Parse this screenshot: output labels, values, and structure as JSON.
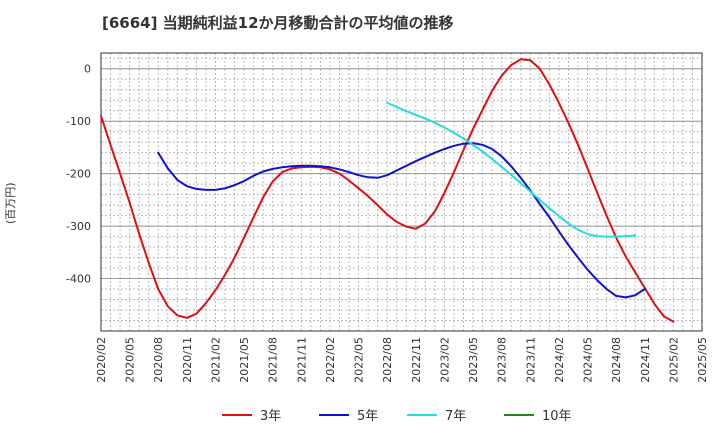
{
  "chart_data": {
    "type": "line",
    "title": "[6664]  当期純利益12か月移動合計の平均値の推移",
    "ylabel": "(百万円)",
    "xlabel": "",
    "x_ticks": [
      "2020/02",
      "2020/05",
      "2020/08",
      "2020/11",
      "2021/02",
      "2021/05",
      "2021/08",
      "2021/11",
      "2022/02",
      "2022/05",
      "2022/08",
      "2022/11",
      "2023/02",
      "2023/05",
      "2023/08",
      "2023/11",
      "2024/02",
      "2024/05",
      "2024/08",
      "2024/11",
      "2025/02",
      "2025/05"
    ],
    "y_ticks": [
      0,
      -100,
      -200,
      -300,
      -400
    ],
    "xlim": [
      "2020/02",
      "2025/05"
    ],
    "ylim": [
      -500,
      30
    ],
    "grid": true,
    "legend_position": "bottom",
    "series": [
      {
        "name": "3年",
        "color": "#dd1111",
        "points": [
          [
            "2020/02",
            -90
          ],
          [
            "2020/03",
            -145
          ],
          [
            "2020/04",
            -200
          ],
          [
            "2020/05",
            -255
          ],
          [
            "2020/06",
            -315
          ],
          [
            "2020/07",
            -370
          ],
          [
            "2020/08",
            -420
          ],
          [
            "2020/09",
            -453
          ],
          [
            "2020/10",
            -470
          ],
          [
            "2020/11",
            -475
          ],
          [
            "2020/12",
            -467
          ],
          [
            "2021/01",
            -447
          ],
          [
            "2021/02",
            -422
          ],
          [
            "2021/03",
            -393
          ],
          [
            "2021/04",
            -360
          ],
          [
            "2021/05",
            -322
          ],
          [
            "2021/06",
            -283
          ],
          [
            "2021/07",
            -245
          ],
          [
            "2021/08",
            -215
          ],
          [
            "2021/09",
            -197
          ],
          [
            "2021/10",
            -190
          ],
          [
            "2021/11",
            -188
          ],
          [
            "2021/12",
            -187
          ],
          [
            "2022/01",
            -188
          ],
          [
            "2022/02",
            -192
          ],
          [
            "2022/03",
            -200
          ],
          [
            "2022/04",
            -213
          ],
          [
            "2022/05",
            -228
          ],
          [
            "2022/06",
            -243
          ],
          [
            "2022/07",
            -260
          ],
          [
            "2022/08",
            -278
          ],
          [
            "2022/09",
            -292
          ],
          [
            "2022/10",
            -301
          ],
          [
            "2022/11",
            -305
          ],
          [
            "2022/12",
            -295
          ],
          [
            "2023/01",
            -272
          ],
          [
            "2023/02",
            -237
          ],
          [
            "2023/03",
            -197
          ],
          [
            "2023/04",
            -155
          ],
          [
            "2023/05",
            -115
          ],
          [
            "2023/06",
            -78
          ],
          [
            "2023/07",
            -42
          ],
          [
            "2023/08",
            -13
          ],
          [
            "2023/09",
            7
          ],
          [
            "2023/10",
            18
          ],
          [
            "2023/11",
            16
          ],
          [
            "2023/12",
            0
          ],
          [
            "2024/01",
            -30
          ],
          [
            "2024/02",
            -65
          ],
          [
            "2024/03",
            -103
          ],
          [
            "2024/04",
            -145
          ],
          [
            "2024/05",
            -190
          ],
          [
            "2024/06",
            -236
          ],
          [
            "2024/07",
            -280
          ],
          [
            "2024/08",
            -322
          ],
          [
            "2024/09",
            -358
          ],
          [
            "2024/10",
            -388
          ],
          [
            "2024/11",
            -418
          ],
          [
            "2024/12",
            -448
          ],
          [
            "2025/01",
            -472
          ],
          [
            "2025/02",
            -482
          ]
        ]
      },
      {
        "name": "5年",
        "color": "#1111cc",
        "points": [
          [
            "2020/08",
            -160
          ],
          [
            "2020/09",
            -190
          ],
          [
            "2020/10",
            -212
          ],
          [
            "2020/11",
            -224
          ],
          [
            "2020/12",
            -229
          ],
          [
            "2021/01",
            -231
          ],
          [
            "2021/02",
            -231
          ],
          [
            "2021/03",
            -228
          ],
          [
            "2021/04",
            -222
          ],
          [
            "2021/05",
            -214
          ],
          [
            "2021/06",
            -204
          ],
          [
            "2021/07",
            -196
          ],
          [
            "2021/08",
            -191
          ],
          [
            "2021/09",
            -188
          ],
          [
            "2021/10",
            -186
          ],
          [
            "2021/11",
            -185
          ],
          [
            "2021/12",
            -185
          ],
          [
            "2022/01",
            -186
          ],
          [
            "2022/02",
            -188
          ],
          [
            "2022/03",
            -192
          ],
          [
            "2022/04",
            -197
          ],
          [
            "2022/05",
            -203
          ],
          [
            "2022/06",
            -207
          ],
          [
            "2022/07",
            -208
          ],
          [
            "2022/08",
            -203
          ],
          [
            "2022/09",
            -194
          ],
          [
            "2022/10",
            -185
          ],
          [
            "2022/11",
            -176
          ],
          [
            "2022/12",
            -168
          ],
          [
            "2023/01",
            -160
          ],
          [
            "2023/02",
            -153
          ],
          [
            "2023/03",
            -147
          ],
          [
            "2023/04",
            -143
          ],
          [
            "2023/05",
            -142
          ],
          [
            "2023/06",
            -145
          ],
          [
            "2023/07",
            -153
          ],
          [
            "2023/08",
            -167
          ],
          [
            "2023/09",
            -186
          ],
          [
            "2023/10",
            -208
          ],
          [
            "2023/11",
            -232
          ],
          [
            "2023/12",
            -258
          ],
          [
            "2024/01",
            -283
          ],
          [
            "2024/02",
            -310
          ],
          [
            "2024/03",
            -336
          ],
          [
            "2024/04",
            -360
          ],
          [
            "2024/05",
            -383
          ],
          [
            "2024/06",
            -403
          ],
          [
            "2024/07",
            -420
          ],
          [
            "2024/08",
            -433
          ],
          [
            "2024/09",
            -436
          ],
          [
            "2024/10",
            -432
          ],
          [
            "2024/11",
            -420
          ]
        ]
      },
      {
        "name": "7年",
        "color": "#22dddd",
        "points": [
          [
            "2022/08",
            -65
          ],
          [
            "2022/09",
            -73
          ],
          [
            "2022/10",
            -81
          ],
          [
            "2022/11",
            -88
          ],
          [
            "2022/12",
            -95
          ],
          [
            "2023/01",
            -103
          ],
          [
            "2023/02",
            -112
          ],
          [
            "2023/03",
            -122
          ],
          [
            "2023/04",
            -133
          ],
          [
            "2023/05",
            -145
          ],
          [
            "2023/06",
            -158
          ],
          [
            "2023/07",
            -172
          ],
          [
            "2023/08",
            -187
          ],
          [
            "2023/09",
            -202
          ],
          [
            "2023/10",
            -218
          ],
          [
            "2023/11",
            -234
          ],
          [
            "2023/12",
            -250
          ],
          [
            "2024/01",
            -266
          ],
          [
            "2024/02",
            -281
          ],
          [
            "2024/03",
            -295
          ],
          [
            "2024/04",
            -307
          ],
          [
            "2024/05",
            -315
          ],
          [
            "2024/06",
            -319
          ],
          [
            "2024/07",
            -320
          ],
          [
            "2024/08",
            -320
          ],
          [
            "2024/09",
            -319
          ],
          [
            "2024/10",
            -318
          ]
        ]
      },
      {
        "name": "10年",
        "color": "#228822",
        "points": []
      }
    ]
  }
}
